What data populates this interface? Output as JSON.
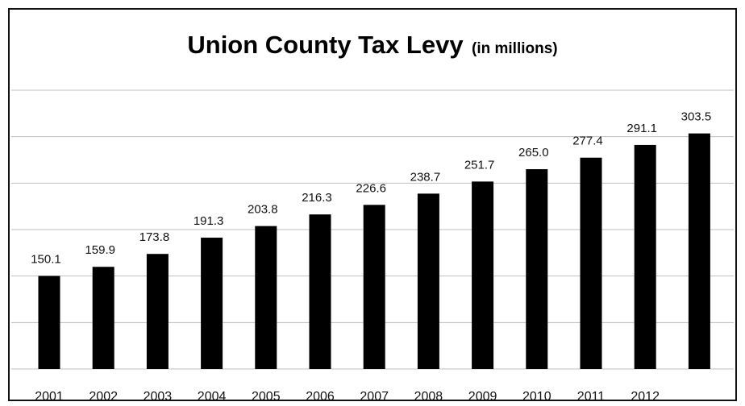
{
  "chart_data": {
    "type": "bar",
    "title": "Union County Tax Levy",
    "subtitle": "(in millions)",
    "xlabel": "",
    "ylabel": "",
    "categories": [
      "2001",
      "2002",
      "2003",
      "2004",
      "2005",
      "2006",
      "2007",
      "2008",
      "2009",
      "2010",
      "2011",
      "2012",
      ""
    ],
    "values": [
      150.1,
      159.9,
      173.8,
      191.3,
      203.8,
      216.3,
      226.6,
      238.7,
      251.7,
      265.0,
      277.4,
      291.1,
      303.5
    ],
    "value_labels": [
      "150.1",
      "159.9",
      "173.8",
      "191.3",
      "203.8",
      "216.3",
      "226.6",
      "238.7",
      "251.7",
      "265.0",
      "277.4",
      "291.1",
      "303.5"
    ],
    "ylim": [
      50,
      350
    ],
    "grid": true,
    "legend": "none",
    "bar_color": "#000000",
    "grid_color": "#bfbfbf"
  }
}
